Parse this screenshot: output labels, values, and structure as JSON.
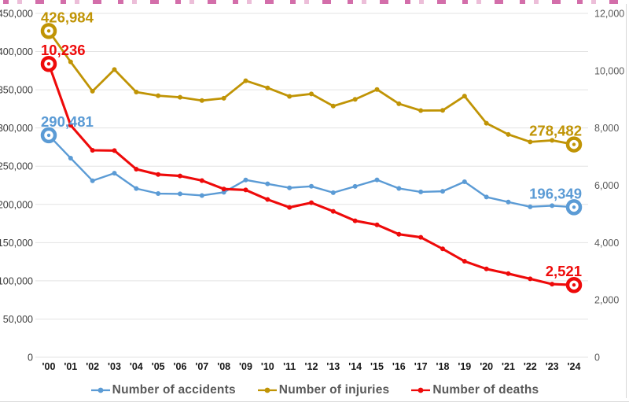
{
  "decor": {
    "clipped_title_color": "#cb559b",
    "grid_color": "#e3e3e3",
    "left_axis_color": "#3b3b3b",
    "right_axis_color": "#595959",
    "x_axis_color": "#161616"
  },
  "chart_data": {
    "type": "line",
    "x": [
      "'00",
      "'01",
      "'02",
      "'03",
      "'04",
      "'05",
      "'06",
      "'07",
      "'08",
      "'09",
      "'10",
      "'11",
      "'12",
      "'13",
      "'14",
      "'15",
      "'16",
      "'17",
      "'18",
      "'19",
      "'20",
      "'21",
      "'22",
      "'23",
      "'24"
    ],
    "series": [
      {
        "name": "Number of injuries",
        "axis": "left",
        "color": "#C09405",
        "line_width": 2.8,
        "values": [
          426984,
          386539,
          348149,
          376503,
          346987,
          342233,
          340229,
          335906,
          338962,
          361875,
          352458,
          341391,
          344565,
          328711,
          337497,
          350400,
          331720,
          322829,
          323037,
          341712,
          306194,
          291608,
          281803,
          283799,
          278482
        ],
        "start_label": "426,984",
        "end_label": "278,482"
      },
      {
        "name": "Number of accidents",
        "axis": "left",
        "color": "#5B9BD5",
        "line_width": 2.4,
        "values": [
          290481,
          260579,
          230953,
          240832,
          220755,
          214171,
          213745,
          211662,
          215822,
          231990,
          226878,
          221711,
          223656,
          215354,
          223552,
          232035,
          220917,
          216335,
          217148,
          229600,
          209654,
          203130,
          196836,
          198296,
          196349
        ],
        "start_label": "290,481",
        "end_label": "196,349"
      },
      {
        "name": "Number of deaths",
        "axis": "right",
        "color": "#EE0A0A",
        "line_width": 3.1,
        "values": [
          10236,
          8097,
          7222,
          7212,
          6563,
          6376,
          6327,
          6166,
          5870,
          5838,
          5505,
          5229,
          5392,
          5092,
          4762,
          4621,
          4292,
          4185,
          3781,
          3349,
          3081,
          2916,
          2735,
          2551,
          2521
        ],
        "start_label": "10,236",
        "end_label": "2,521"
      }
    ],
    "left_axis": {
      "min": 0,
      "max": 450000,
      "tick_step": 50000,
      "tick_labels_top_to_bottom": [
        "450,000",
        "400,000",
        "350,000",
        "300,000",
        "250,000",
        "200,000",
        "150,000",
        "100,000",
        "50,000",
        "0"
      ]
    },
    "right_axis": {
      "min": 0,
      "max": 12000,
      "tick_step": 2000,
      "tick_labels_top_to_bottom": [
        "12,000",
        "10,000",
        "8,000",
        "6,000",
        "4,000",
        "2,000",
        "0"
      ]
    },
    "grid": "horizontal",
    "legend_position": "bottom",
    "legend": [
      "Number of accidents",
      "Number of injuries",
      "Number of deaths"
    ],
    "legend_colors": [
      "#5B9BD5",
      "#C09405",
      "#EE0A0A"
    ]
  }
}
